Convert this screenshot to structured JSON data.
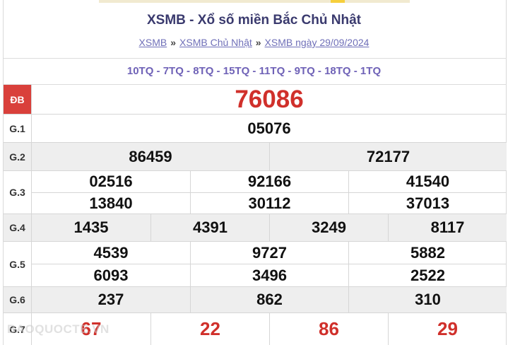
{
  "header": {
    "title": "XSMB - Xổ số miền Bắc Chủ Nhật",
    "breadcrumbs": [
      "XSMB",
      "XSMB Chủ Nhật",
      "XSMB ngày 29/09/2024"
    ],
    "separator": "»",
    "codes": "10TQ - 7TQ - 8TQ - 15TQ - 11TQ - 9TQ - 18TQ - 1TQ"
  },
  "prizes": {
    "db": {
      "label": "ĐB",
      "values": [
        "76086"
      ]
    },
    "g1": {
      "label": "G.1",
      "values": [
        "05076"
      ]
    },
    "g2": {
      "label": "G.2",
      "values": [
        "86459",
        "72177"
      ]
    },
    "g3": {
      "label": "G.3",
      "values": [
        "02516",
        "92166",
        "41540",
        "13840",
        "30112",
        "37013"
      ]
    },
    "g4": {
      "label": "G.4",
      "values": [
        "1435",
        "4391",
        "3249",
        "8117"
      ]
    },
    "g5": {
      "label": "G.5",
      "values": [
        "4539",
        "9727",
        "5882",
        "6093",
        "3496",
        "2522"
      ]
    },
    "g6": {
      "label": "G.6",
      "values": [
        "237",
        "862",
        "310"
      ]
    },
    "g7": {
      "label": "G.7",
      "values": [
        "67",
        "22",
        "86",
        "29"
      ]
    }
  },
  "watermark": "BAOQUOCTE.VN",
  "colors": {
    "accent_red": "#d0302b",
    "title": "#3a3a6e",
    "link": "#6f6fb8",
    "codes": "#6f62b7"
  }
}
